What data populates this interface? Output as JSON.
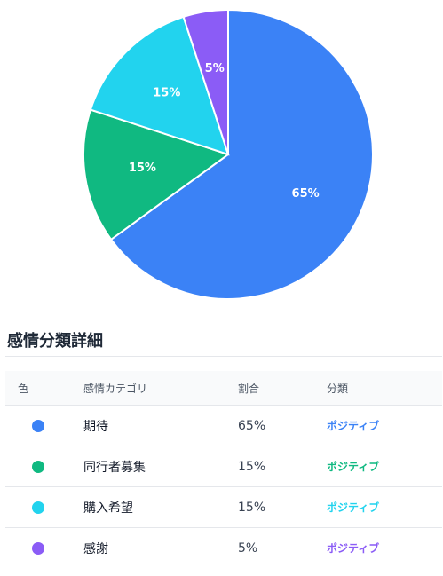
{
  "chart_data": {
    "type": "pie",
    "slices": [
      {
        "label": "期待",
        "value": 65,
        "display": "65%",
        "color": "#3b82f6"
      },
      {
        "label": "同行者募集",
        "value": 15,
        "display": "15%",
        "color": "#10b981"
      },
      {
        "label": "購入希望",
        "value": 15,
        "display": "15%",
        "color": "#22d3ee"
      },
      {
        "label": "感謝",
        "value": 5,
        "display": "5%",
        "color": "#8b5cf6"
      }
    ]
  },
  "section": {
    "title": "感情分類詳細"
  },
  "table": {
    "headers": {
      "color": "色",
      "category": "感情カテゴリ",
      "ratio": "割合",
      "classification": "分類"
    },
    "rows": [
      {
        "color": "#3b82f6",
        "category": "期待",
        "ratio": "65%",
        "classification": "ポジティブ"
      },
      {
        "color": "#10b981",
        "category": "同行者募集",
        "ratio": "15%",
        "classification": "ポジティブ"
      },
      {
        "color": "#22d3ee",
        "category": "購入希望",
        "ratio": "15%",
        "classification": "ポジティブ"
      },
      {
        "color": "#8b5cf6",
        "category": "感謝",
        "ratio": "5%",
        "classification": "ポジティブ"
      }
    ]
  }
}
